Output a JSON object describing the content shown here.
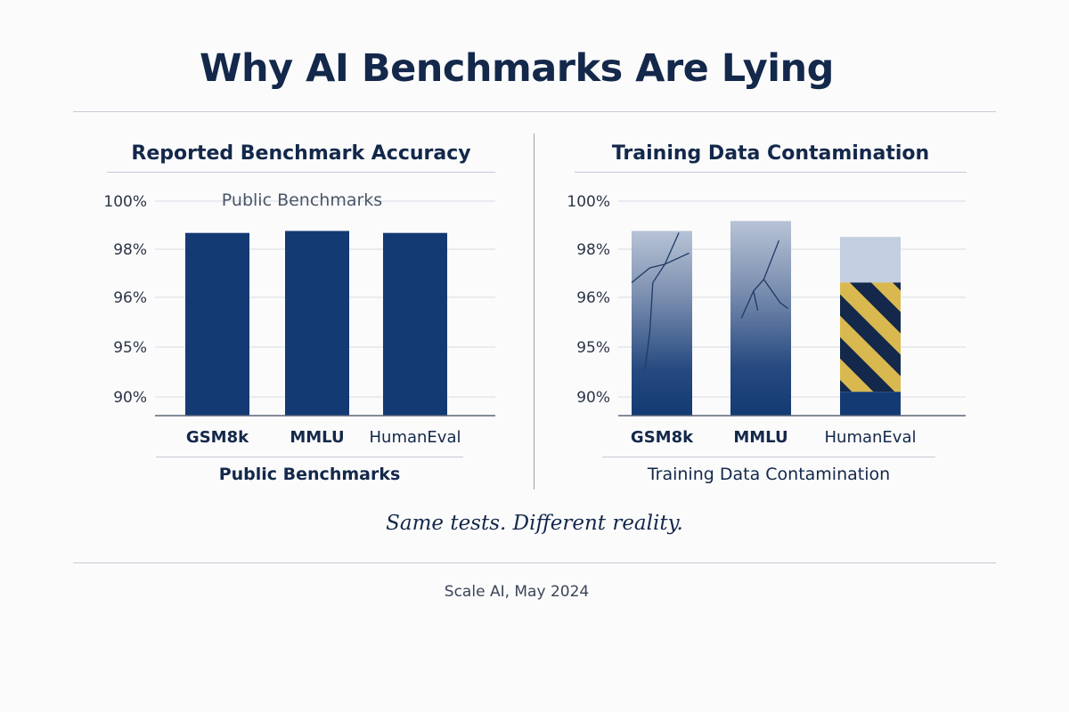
{
  "title": "Why AI Benchmarks Are Lying",
  "tagline": "Same tests. Different reality.",
  "source": "Scale AI, May 2024",
  "colors": {
    "navy": "#143a73",
    "light_blue": "#c3cee0",
    "hatch_gold": "#d9b94f",
    "hatch_dark": "#13284a",
    "grid": "#d7dbe2"
  },
  "chart_data": [
    {
      "type": "bar",
      "title": "Reported Benchmark Accuracy",
      "annotation": "Public Benchmarks",
      "bottom_label": "Public Benchmarks",
      "categories": [
        "GSM8k",
        "MMLU",
        "HumanEval"
      ],
      "values": [
        98.4,
        98.5,
        98.4
      ],
      "y_ticks": [
        "100%",
        "98%",
        "96%",
        "95%",
        "90%"
      ],
      "ylim": [
        89.2,
        100
      ],
      "grid": true
    },
    {
      "type": "bar",
      "title": "Training Data Contamination",
      "bottom_label": "Training Data Contamination",
      "categories": [
        "GSM8k",
        "MMLU",
        "HumanEval"
      ],
      "values": [
        98.5,
        99.0,
        98.2
      ],
      "contaminated_range": {
        "category": "HumanEval",
        "from": 90.4,
        "to": 95.9
      },
      "y_ticks": [
        "100%",
        "98%",
        "96%",
        "95%",
        "90%"
      ],
      "ylim": [
        89.2,
        100
      ],
      "grid": true
    }
  ]
}
